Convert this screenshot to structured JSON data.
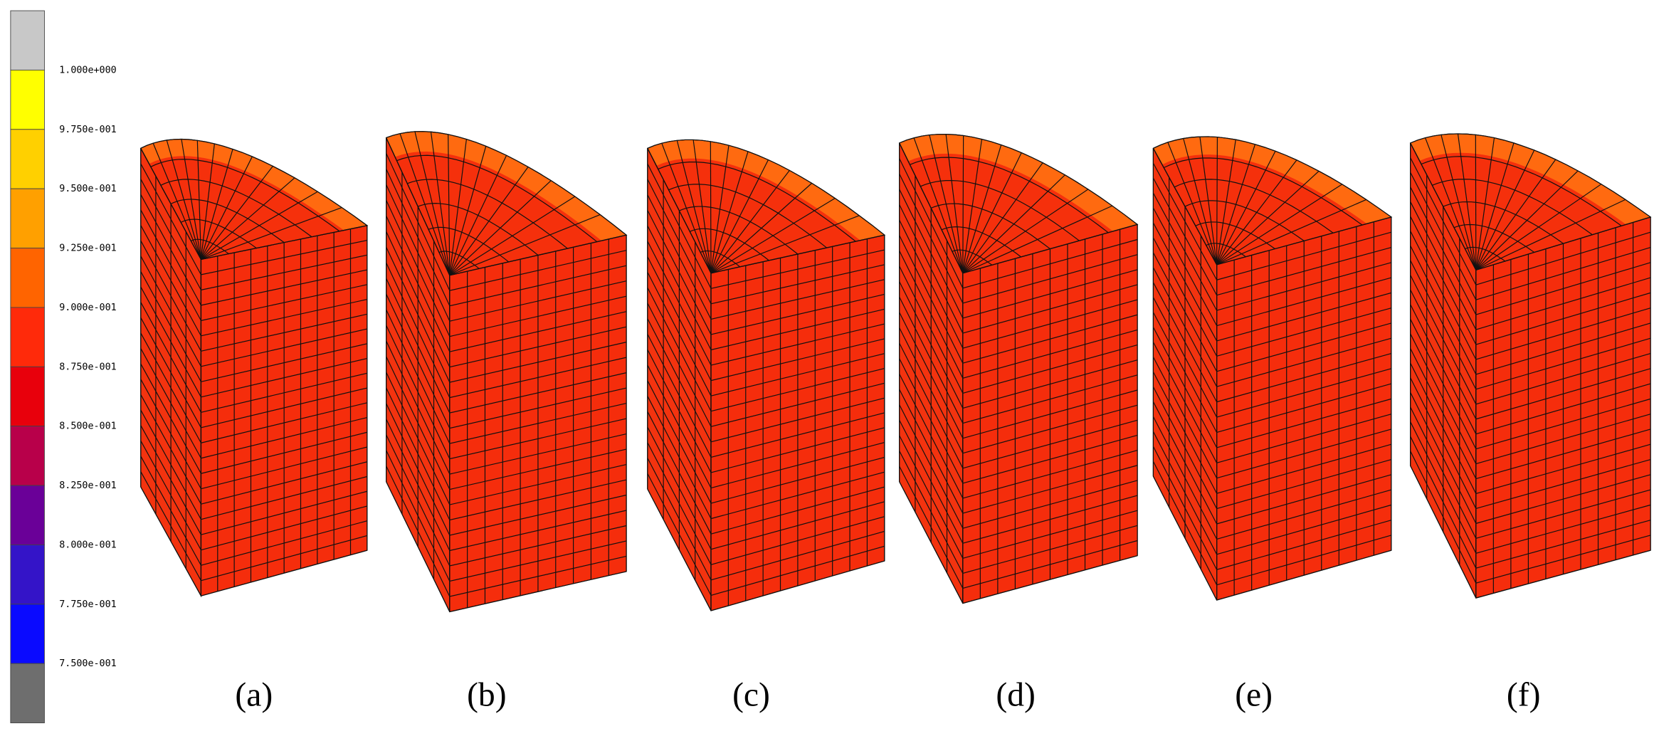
{
  "colorbar": {
    "labels": [
      "1.000e+000",
      "9.750e-001",
      "9.500e-001",
      "9.250e-001",
      "9.000e-001",
      "8.750e-001",
      "8.500e-001",
      "8.250e-001",
      "8.000e-001",
      "7.750e-001",
      "7.500e-001"
    ],
    "colors": [
      "#c8c8c8",
      "#ffff00",
      "#ffd000",
      "#ffa000",
      "#ff6400",
      "#ff2a0a",
      "#e8000c",
      "#b8004a",
      "#6a0098",
      "#3414c8",
      "#0a0aff",
      "#6e6e6e"
    ]
  },
  "panels": [
    {
      "label": "(a)"
    },
    {
      "label": "(b)"
    },
    {
      "label": "(c)"
    },
    {
      "label": "(d)"
    },
    {
      "label": "(e)"
    },
    {
      "label": "(f)"
    }
  ]
}
